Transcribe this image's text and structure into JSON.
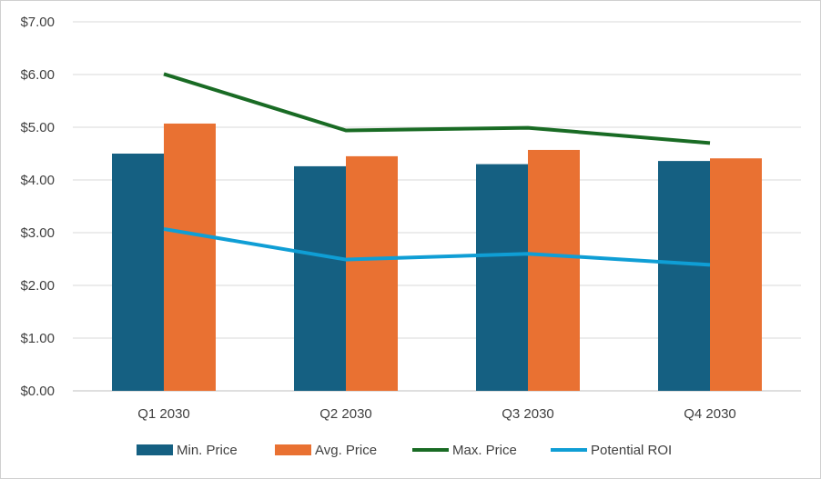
{
  "chart_data": {
    "type": "bar",
    "categories": [
      "Q1 2030",
      "Q2 2030",
      "Q3 2030",
      "Q4 2030"
    ],
    "series": [
      {
        "name": "Min. Price",
        "kind": "bar",
        "color": "#156082",
        "values": [
          4.5,
          4.26,
          4.3,
          4.36
        ]
      },
      {
        "name": "Avg. Price",
        "kind": "bar",
        "color": "#E97132",
        "values": [
          5.07,
          4.45,
          4.57,
          4.41
        ]
      },
      {
        "name": "Max. Price",
        "kind": "line",
        "color": "#196B24",
        "values": [
          6.01,
          4.94,
          4.99,
          4.7
        ]
      },
      {
        "name": "Potential ROI",
        "kind": "line",
        "color": "#0F9ED5",
        "values": [
          3.07,
          2.49,
          2.6,
          2.39
        ]
      }
    ],
    "yticks": [
      "$0.00",
      "$1.00",
      "$2.00",
      "$3.00",
      "$4.00",
      "$5.00",
      "$6.00",
      "$7.00"
    ],
    "ylim": [
      0,
      7
    ],
    "grid": true,
    "legend_position": "bottom",
    "title": "",
    "xlabel": "",
    "ylabel": ""
  }
}
